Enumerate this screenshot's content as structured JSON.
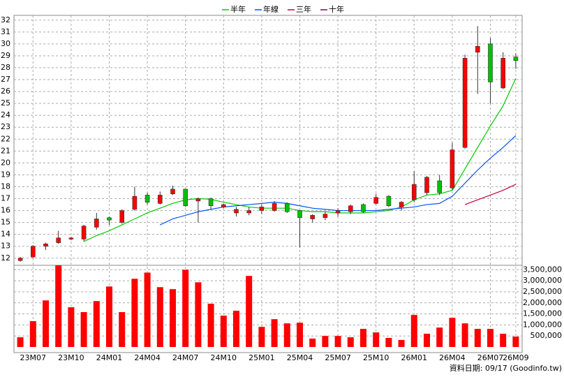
{
  "chart_data": [
    {
      "type": "candlestick",
      "categories": [
        null,
        "23M07",
        null,
        null,
        "23M10",
        null,
        null,
        "24M01",
        null,
        null,
        "24M04",
        null,
        null,
        "24M07",
        null,
        null,
        "24M10",
        null,
        null,
        "25M01",
        null,
        null,
        "25M04",
        null,
        null,
        "25M07",
        null,
        null,
        "25M10",
        null,
        null,
        "26M01",
        null,
        null,
        "26M04",
        null,
        null,
        "26M07",
        null,
        "26M09"
      ],
      "open": [
        11.8,
        12.1,
        13.0,
        13.3,
        13.6,
        13.6,
        14.6,
        15.4,
        15.0,
        16.1,
        17.3,
        16.6,
        17.4,
        17.8,
        16.8,
        17.0,
        16.3,
        15.8,
        15.8,
        16.0,
        16.0,
        16.6,
        16.0,
        15.3,
        15.4,
        15.8,
        15.9,
        16.5,
        16.6,
        17.2,
        16.3,
        16.9,
        17.5,
        18.5,
        17.9,
        21.3,
        29.3,
        30.0,
        26.3,
        28.9
      ],
      "high": [
        12.1,
        13.1,
        13.3,
        14.3,
        13.8,
        14.8,
        15.8,
        15.5,
        16.1,
        18.0,
        17.5,
        17.6,
        18.1,
        17.8,
        17.1,
        17.1,
        16.6,
        16.3,
        16.3,
        16.5,
        16.8,
        16.7,
        16.0,
        15.7,
        15.9,
        16.2,
        16.5,
        16.6,
        17.4,
        17.3,
        16.8,
        19.3,
        18.9,
        19.0,
        21.7,
        29.1,
        31.5,
        30.5,
        29.3,
        29.2
      ],
      "low": [
        11.7,
        12.0,
        12.7,
        13.2,
        13.5,
        13.4,
        14.4,
        14.8,
        14.9,
        16.0,
        16.5,
        16.5,
        17.3,
        16.3,
        15.0,
        16.1,
        16.2,
        15.5,
        15.6,
        15.7,
        15.9,
        15.8,
        12.9,
        15.0,
        15.2,
        15.5,
        15.7,
        15.8,
        16.5,
        16.3,
        16.0,
        16.7,
        17.3,
        17.3,
        17.7,
        21.2,
        25.8,
        25.0,
        26.2,
        27.9
      ],
      "close": [
        12.0,
        13.0,
        13.2,
        13.7,
        13.7,
        14.7,
        15.3,
        15.2,
        16.0,
        17.2,
        16.7,
        17.3,
        17.8,
        16.4,
        17.0,
        16.4,
        16.5,
        16.1,
        16.0,
        16.3,
        16.6,
        15.9,
        15.4,
        15.6,
        15.7,
        16.0,
        16.4,
        15.9,
        17.1,
        16.4,
        16.7,
        18.2,
        18.8,
        17.5,
        21.1,
        28.8,
        29.8,
        26.8,
        28.8,
        28.6
      ],
      "up_color": "#ff0000",
      "down_color": "#00c000",
      "series": [
        {
          "name": "半年",
          "color": "#00cc00",
          "values": [
            null,
            null,
            null,
            null,
            null,
            13.4,
            13.9,
            14.3,
            14.8,
            15.3,
            15.8,
            16.2,
            16.6,
            16.9,
            17.0,
            16.95,
            16.7,
            16.5,
            16.3,
            16.2,
            16.2,
            16.2,
            16.0,
            15.9,
            15.9,
            15.8,
            15.8,
            15.8,
            15.9,
            16.0,
            16.3,
            16.9,
            17.3,
            17.4,
            17.7,
            19.5,
            21.3,
            23.1,
            24.8,
            27.1
          ]
        },
        {
          "name": "年線",
          "color": "#0050ff",
          "values": [
            null,
            null,
            null,
            null,
            null,
            null,
            null,
            null,
            null,
            null,
            null,
            14.8,
            15.3,
            15.6,
            15.9,
            16.1,
            16.3,
            16.4,
            16.5,
            16.6,
            16.7,
            16.6,
            16.4,
            16.2,
            16.1,
            16.0,
            16.0,
            16.0,
            16.0,
            16.1,
            16.2,
            16.3,
            16.5,
            16.6,
            17.2,
            18.3,
            19.4,
            20.4,
            21.3,
            22.3
          ]
        },
        {
          "name": "三年",
          "color": "#cc0033",
          "values": [
            null,
            null,
            null,
            null,
            null,
            null,
            null,
            null,
            null,
            null,
            null,
            null,
            null,
            null,
            null,
            null,
            null,
            null,
            null,
            null,
            null,
            null,
            null,
            null,
            null,
            null,
            null,
            null,
            null,
            null,
            null,
            null,
            null,
            null,
            null,
            16.5,
            16.9,
            17.3,
            17.7,
            18.2
          ]
        },
        {
          "name": "十年",
          "color": "#800080",
          "values": [
            null,
            null,
            null,
            null,
            null,
            null,
            null,
            null,
            null,
            null,
            null,
            null,
            null,
            null,
            null,
            null,
            null,
            null,
            null,
            null,
            null,
            null,
            null,
            null,
            null,
            null,
            null,
            null,
            null,
            null,
            null,
            null,
            null,
            null,
            null,
            null,
            null,
            null,
            null,
            null
          ]
        }
      ],
      "ylim": [
        11.4,
        32.4
      ],
      "yticks": [
        12,
        13,
        14,
        15,
        16,
        17,
        18,
        19,
        20,
        21,
        22,
        23,
        24,
        25,
        26,
        27,
        28,
        29,
        30,
        31,
        32
      ],
      "grid": true
    },
    {
      "type": "bar",
      "color": "#ff0000",
      "values": [
        440000,
        1170000,
        2110000,
        3700000,
        1800000,
        1580000,
        2080000,
        2740000,
        1580000,
        3090000,
        3370000,
        2710000,
        2620000,
        3500000,
        2930000,
        1960000,
        1420000,
        1640000,
        3220000,
        910000,
        1260000,
        1070000,
        1100000,
        380000,
        500000,
        500000,
        440000,
        820000,
        660000,
        410000,
        320000,
        1450000,
        600000,
        880000,
        1320000,
        1070000,
        820000,
        820000,
        600000,
        470000
      ],
      "ylim": [
        0,
        3700000
      ],
      "yticks": [
        {
          "value": 500000,
          "label": "500,000"
        },
        {
          "value": 1000000,
          "label": "1,000,000"
        },
        {
          "value": 1500000,
          "label": "1,500,000"
        },
        {
          "value": 2000000,
          "label": "2,000,000"
        },
        {
          "value": 2500000,
          "label": "2,500,000"
        },
        {
          "value": 3000000,
          "label": "3,000,000"
        },
        {
          "value": 3500000,
          "label": "3,500,000"
        }
      ],
      "grid": true,
      "annotation": "資料日期: 09/17 (Goodinfo.tw)"
    }
  ]
}
